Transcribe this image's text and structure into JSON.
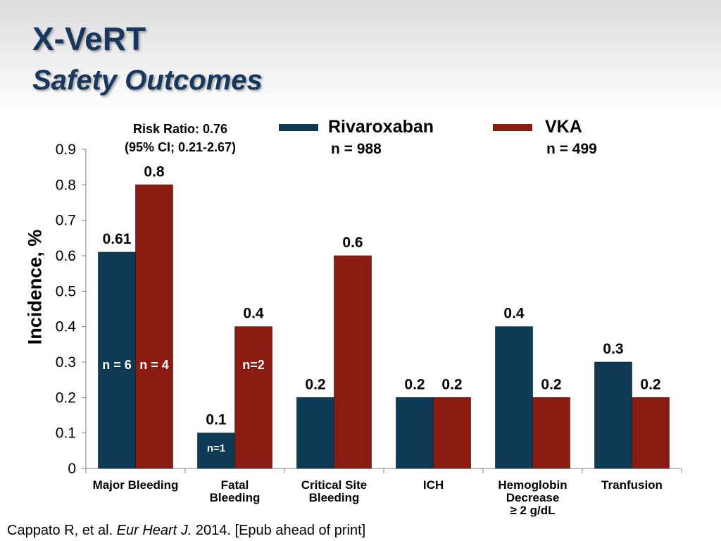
{
  "slide": {
    "title": "X-VeRT",
    "subtitle": "Safety Outcomes",
    "risk_ratio_line1": "Risk Ratio: 0.76",
    "risk_ratio_line2": "(95% CI; 0.21-2.67)",
    "citation_authors": "Cappato R, et al.",
    "citation_journal": "Eur Heart J.",
    "citation_rest": "2014. [Epub ahead of print]"
  },
  "legend": [
    {
      "name": "Rivaroxaban",
      "n": "n = 988",
      "color": "#0d3a55"
    },
    {
      "name": "VKA",
      "n": "n = 499",
      "color": "#8b1a0f"
    }
  ],
  "chart_data": {
    "type": "bar",
    "ylabel": "Incidence, %",
    "ylim": [
      0,
      0.9
    ],
    "yticks": [
      "0",
      "0.1",
      "0.2",
      "0.3",
      "0.4",
      "0.5",
      "0.6",
      "0.7",
      "0.8",
      "0.9"
    ],
    "categories": [
      [
        "Major Bleeding"
      ],
      [
        "Fatal",
        "Bleeding"
      ],
      [
        "Critical Site",
        "Bleeding"
      ],
      [
        "ICH"
      ],
      [
        "Hemoglobin",
        "Decrease",
        "≥ 2 g/dL"
      ],
      [
        "Tranfusion"
      ]
    ],
    "series": [
      {
        "name": "Rivaroxaban",
        "color": "#0d3a55",
        "values": [
          0.61,
          0.1,
          0.2,
          0.2,
          0.4,
          0.3
        ],
        "labels": [
          "0.61",
          "0.1",
          "0.2",
          "0.2",
          "0.4",
          "0.3"
        ],
        "inner_labels": [
          "n = 6",
          "n=1",
          "",
          "",
          "",
          ""
        ]
      },
      {
        "name": "VKA",
        "color": "#8b1a0f",
        "values": [
          0.8,
          0.4,
          0.6,
          0.2,
          0.2,
          0.2
        ],
        "labels": [
          "0.8",
          "0.4",
          "0.6",
          "0.2",
          "0.2",
          "0.2"
        ],
        "inner_labels": [
          "n = 4",
          "n=2",
          "",
          "",
          "",
          ""
        ]
      }
    ]
  }
}
